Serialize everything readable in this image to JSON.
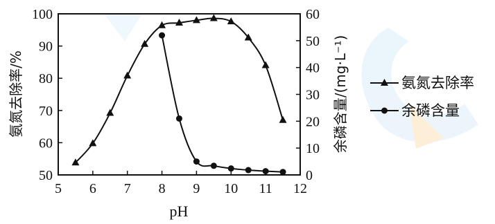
{
  "chart_data": {
    "type": "line",
    "xlabel": "pH",
    "ylabel_left": "氨氮去除率/%",
    "ylabel_right": "余磷含量/(mg·L⁻¹)",
    "xlim": [
      5,
      12
    ],
    "ylim_left": [
      50,
      100
    ],
    "ylim_right": [
      0,
      60
    ],
    "xticks": [
      5,
      6,
      7,
      8,
      9,
      10,
      11,
      12
    ],
    "yticks_left": [
      50,
      60,
      70,
      80,
      90,
      100
    ],
    "yticks_right": [
      0,
      10,
      20,
      30,
      40,
      50,
      60
    ],
    "legend_position": "right",
    "series": [
      {
        "name": "氨氮去除率",
        "axis": "left",
        "marker": "triangle",
        "x": [
          5.5,
          6.0,
          6.5,
          7.0,
          7.5,
          8.0,
          8.5,
          9.0,
          9.5,
          10.0,
          10.5,
          11.0,
          11.5
        ],
        "y": [
          53.8,
          59.8,
          69.2,
          80.8,
          90.6,
          96.4,
          97.2,
          98.0,
          98.6,
          97.6,
          92.6,
          84.0,
          67.0
        ]
      },
      {
        "name": "余磷含量",
        "axis": "right",
        "marker": "circle",
        "x": [
          8.0,
          8.5,
          9.0,
          9.5,
          10.0,
          10.5,
          11.0,
          11.5
        ],
        "y": [
          52.0,
          21.0,
          5.0,
          3.4,
          2.4,
          1.8,
          1.4,
          1.1
        ]
      }
    ]
  },
  "colors": {
    "ink": "#111111",
    "background": "#ffffff"
  }
}
